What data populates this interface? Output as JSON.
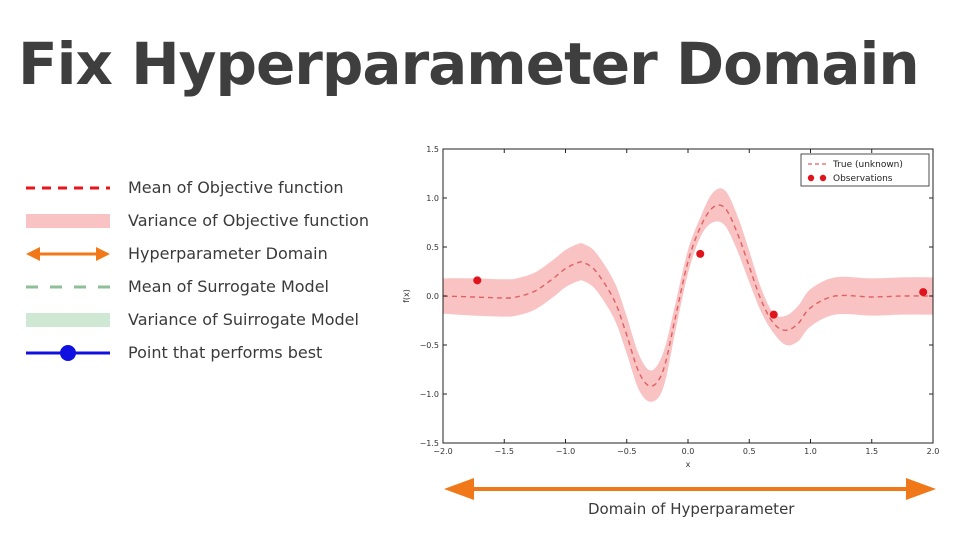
{
  "title": "Fix Hyperparameter Domain",
  "legend": {
    "items": [
      {
        "label": "Mean of Objective function",
        "icon": "red-dashed-line-icon",
        "color": "#e8161b"
      },
      {
        "label": "Variance of Objective function",
        "icon": "pink-band-icon",
        "color": "#f9c3c3"
      },
      {
        "label": "Hyperparameter Domain",
        "icon": "orange-double-arrow-icon",
        "color": "#f07818"
      },
      {
        "label": "Mean of Surrogate Model",
        "icon": "green-dashed-line-icon",
        "color": "#8fbf9a"
      },
      {
        "label": "Variance of Suirrogate Model",
        "icon": "green-band-icon",
        "color": "#cfe8d3"
      },
      {
        "label": "Point that performs best",
        "icon": "blue-dot-line-icon",
        "color": "#1010e0"
      }
    ]
  },
  "chart_data": {
    "type": "line",
    "xlabel": "x",
    "ylabel": "f(x)",
    "xlim": [
      -2.0,
      2.0
    ],
    "ylim": [
      -1.5,
      1.5
    ],
    "xticks": [
      "−2.0",
      "−1.5",
      "−1.0",
      "−0.5",
      "0.0",
      "0.5",
      "1.0",
      "1.5",
      "2.0"
    ],
    "yticks": [
      "1.5",
      "1.0",
      "0.5",
      "0.0",
      "−0.5",
      "−1.0",
      "−1.5"
    ],
    "grid": false,
    "legend_position": "top-right",
    "series": [
      {
        "name": "True (unknown)",
        "style": "dashed",
        "color": "#e06060",
        "x": [
          -2.0,
          -1.75,
          -1.5,
          -1.4,
          -1.25,
          -1.1,
          -1.0,
          -0.9,
          -0.85,
          -0.75,
          -0.6,
          -0.5,
          -0.4,
          -0.3,
          -0.2,
          -0.1,
          0.0,
          0.1,
          0.2,
          0.3,
          0.4,
          0.5,
          0.6,
          0.7,
          0.8,
          0.9,
          1.0,
          1.2,
          1.5,
          1.75,
          2.0
        ],
        "y": [
          0.0,
          -0.01,
          -0.02,
          -0.01,
          0.05,
          0.18,
          0.28,
          0.34,
          0.34,
          0.25,
          -0.05,
          -0.4,
          -0.78,
          -0.92,
          -0.75,
          -0.2,
          0.35,
          0.7,
          0.9,
          0.9,
          0.65,
          0.3,
          -0.05,
          -0.28,
          -0.35,
          -0.28,
          -0.12,
          0.0,
          -0.01,
          0.0,
          0.0
        ],
        "band": [
          0.18,
          0.19,
          0.19,
          0.19,
          0.19,
          0.19,
          0.19,
          0.19,
          0.19,
          0.19,
          0.19,
          0.19,
          0.18,
          0.16,
          0.18,
          0.14,
          0.12,
          0.1,
          0.15,
          0.18,
          0.18,
          0.16,
          0.12,
          0.1,
          0.15,
          0.18,
          0.19,
          0.19,
          0.19,
          0.19,
          0.19
        ]
      },
      {
        "name": "Observations",
        "style": "markers",
        "color": "#e0141c",
        "x": [
          -1.72,
          0.1,
          0.7,
          1.92
        ],
        "y": [
          0.16,
          0.43,
          -0.19,
          0.04
        ]
      }
    ]
  },
  "domain": {
    "label": "Domain of Hyperparameter",
    "color": "#f07818"
  }
}
